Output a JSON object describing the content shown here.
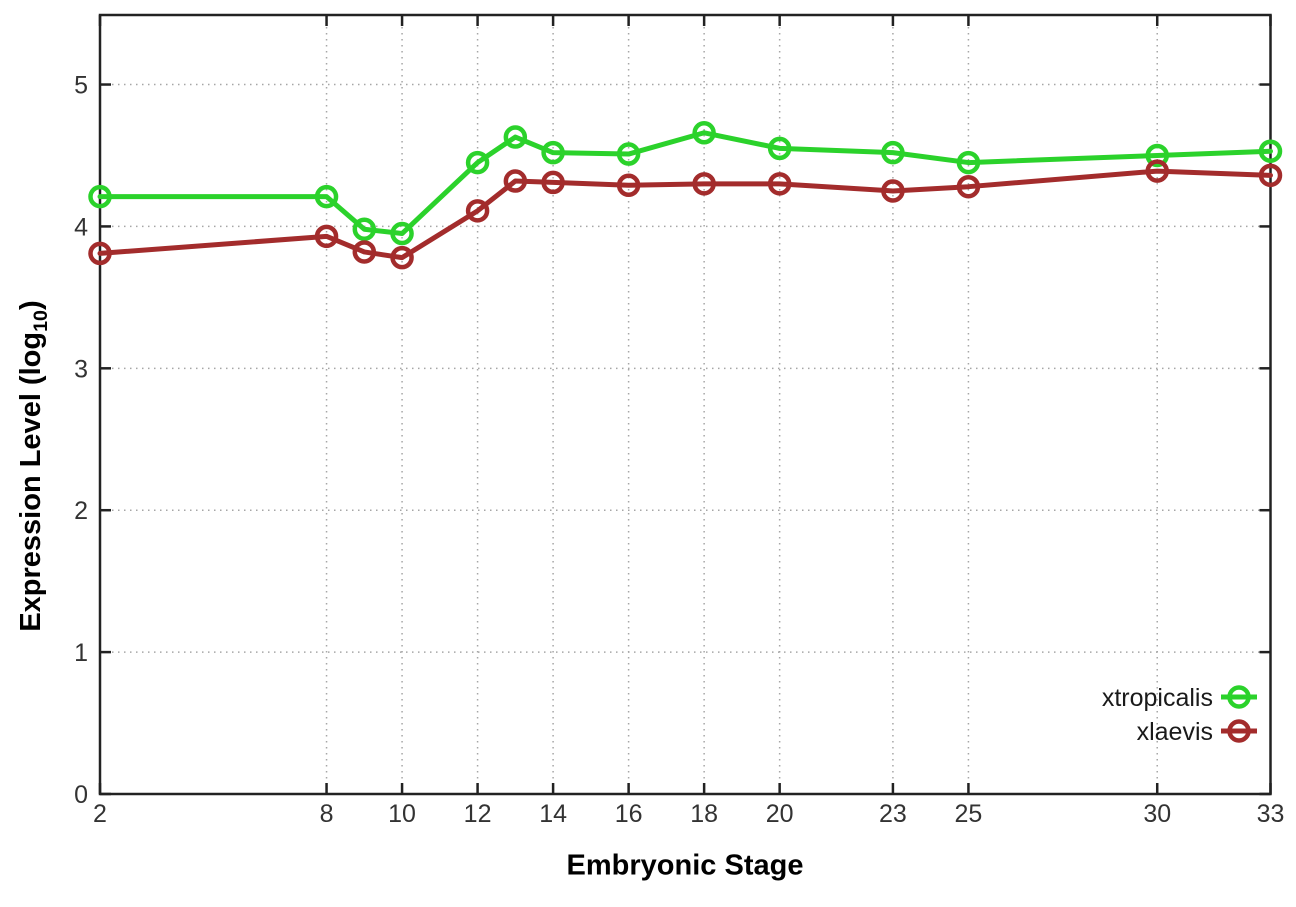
{
  "chart_data": {
    "type": "line",
    "x": [
      2,
      8,
      9,
      10,
      12,
      13,
      14,
      16,
      18,
      20,
      23,
      25,
      30,
      33
    ],
    "series": [
      {
        "name": "xtropicalis",
        "color": "#2bd22b",
        "values": [
          4.21,
          4.21,
          3.98,
          3.95,
          4.45,
          4.63,
          4.52,
          4.51,
          4.66,
          4.55,
          4.52,
          4.45,
          4.5,
          4.53
        ]
      },
      {
        "name": "xlaevis",
        "color": "#a32c2c",
        "values": [
          3.81,
          3.93,
          3.82,
          3.78,
          4.11,
          4.32,
          4.31,
          4.29,
          4.3,
          4.3,
          4.25,
          4.28,
          4.39,
          4.36
        ]
      }
    ],
    "title": "",
    "xlabel": "Embryonic Stage",
    "ylabel": "Expression Level (log10)",
    "xlim": [
      2,
      33
    ],
    "ylim": [
      0,
      5.49
    ],
    "x_ticks": [
      2,
      8,
      10,
      12,
      14,
      16,
      18,
      20,
      23,
      25,
      30,
      33
    ],
    "y_ticks": [
      0,
      1,
      2,
      3,
      4,
      5
    ],
    "grid": true,
    "grid_style": "dotted",
    "legend_position": "inside-bottom-right",
    "marker": "open-circle",
    "line_width": 5
  },
  "axes": {
    "x": {
      "label": "Embryonic Stage"
    },
    "y": {
      "label_prefix": "Expression Level (log",
      "label_sub": "10",
      "label_suffix": ")"
    }
  },
  "colors": {
    "series_green": "#2bd22b",
    "series_dark_red": "#a32c2c",
    "grid": "#a6a6a6",
    "border": "#222222",
    "tick_text": "#333333",
    "legend_text": "#1a1a1a",
    "background": "#ffffff"
  }
}
